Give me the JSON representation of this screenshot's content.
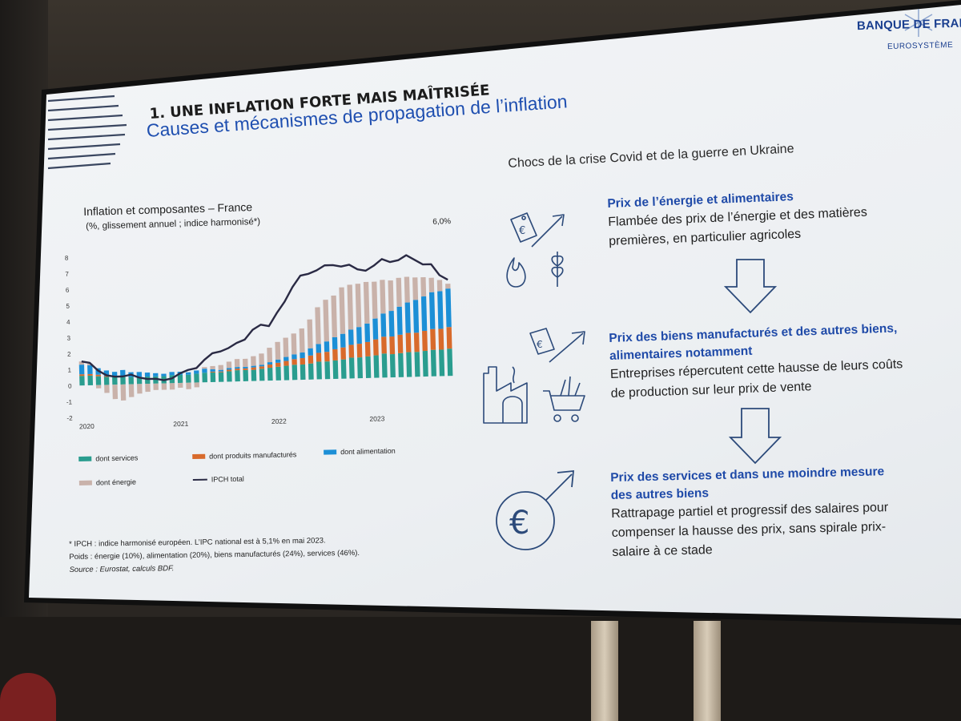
{
  "header": {
    "title": "1. UNE INFLATION FORTE MAIS MAÎTRISÉE",
    "subtitle": "Causes et mécanismes de propagation de l’inflation",
    "logo_name": "BANQUE DE FRANCE",
    "logo_sub": "EUROSYSTÈME"
  },
  "chart": {
    "title": "Inflation et composantes – France",
    "subtitle": "(%, glissement annuel ; indice harmonisé*)",
    "end_label": "6,0%",
    "legend": {
      "services": "dont services",
      "manufactures": "dont produits manufacturés",
      "alimentation": "dont alimentation",
      "energie": "dont énergie",
      "ipch": "IPCH total"
    },
    "notes": {
      "line1": "* IPCH : indice harmonisé européen. L’IPC national est à 5,1% en mai 2023.",
      "line2": "Poids : énergie (10%), alimentation (20%), biens manufacturés (24%), services (46%).",
      "source": "Source : Eurostat, calculs BDF."
    }
  },
  "chart_data": {
    "type": "bar",
    "ylim": [
      -2,
      8
    ],
    "yticks": [
      "8",
      "7",
      "6",
      "5",
      "4",
      "3",
      "2",
      "1",
      "0",
      "-1",
      "-2"
    ],
    "xlabels": [
      "2020",
      "2021",
      "2022",
      "2023"
    ],
    "series": [
      {
        "name": "dont services",
        "color": "#2a9d8f",
        "values": [
          0.6,
          0.6,
          0.55,
          0.5,
          0.5,
          0.5,
          0.45,
          0.45,
          0.45,
          0.45,
          0.45,
          0.5,
          0.5,
          0.5,
          0.55,
          0.6,
          0.6,
          0.6,
          0.65,
          0.7,
          0.7,
          0.7,
          0.75,
          0.8,
          0.85,
          0.9,
          0.95,
          0.95,
          1.0,
          1.1,
          1.1,
          1.15,
          1.2,
          1.3,
          1.3,
          1.35,
          1.4,
          1.5,
          1.45,
          1.5,
          1.55,
          1.55,
          1.6,
          1.65,
          1.65,
          1.7
        ]
      },
      {
        "name": "dont produits manufacturés",
        "color": "#d86a2b",
        "values": [
          0.1,
          0.1,
          0.1,
          0.05,
          0.0,
          0.0,
          0.0,
          0.0,
          0.0,
          0.0,
          0.0,
          0.0,
          0.0,
          0.0,
          0.0,
          0.0,
          0.05,
          0.05,
          0.1,
          0.1,
          0.1,
          0.15,
          0.15,
          0.2,
          0.25,
          0.3,
          0.35,
          0.4,
          0.5,
          0.55,
          0.6,
          0.7,
          0.75,
          0.8,
          0.85,
          0.9,
          1.0,
          1.05,
          1.1,
          1.15,
          1.2,
          1.2,
          1.25,
          1.3,
          1.3,
          1.35
        ]
      },
      {
        "name": "dont alimentation",
        "color": "#1c8fd6",
        "values": [
          0.6,
          0.55,
          0.4,
          0.35,
          0.3,
          0.4,
          0.3,
          0.3,
          0.25,
          0.2,
          0.15,
          0.2,
          0.2,
          0.15,
          0.2,
          0.25,
          0.15,
          0.1,
          0.1,
          0.1,
          0.1,
          0.1,
          0.1,
          0.15,
          0.2,
          0.25,
          0.3,
          0.35,
          0.45,
          0.55,
          0.65,
          0.75,
          0.85,
          0.95,
          1.05,
          1.15,
          1.3,
          1.45,
          1.6,
          1.75,
          1.9,
          2.05,
          2.15,
          2.3,
          2.35,
          2.4
        ]
      },
      {
        "name": "dont énergie",
        "color": "#c9b2aa",
        "values": [
          0.2,
          0.1,
          -0.2,
          -0.5,
          -0.9,
          -1.0,
          -0.8,
          -0.6,
          -0.5,
          -0.4,
          -0.4,
          -0.4,
          -0.3,
          -0.4,
          -0.3,
          0.1,
          0.2,
          0.3,
          0.4,
          0.5,
          0.5,
          0.6,
          0.7,
          0.9,
          1.1,
          1.2,
          1.3,
          1.5,
          1.8,
          2.3,
          2.6,
          2.6,
          2.9,
          2.8,
          2.7,
          2.6,
          2.3,
          2.1,
          1.9,
          1.8,
          1.6,
          1.4,
          1.2,
          0.9,
          0.7,
          0.3
        ]
      }
    ],
    "ipch_total": [
      1.5,
      1.4,
      0.9,
      0.6,
      0.5,
      0.5,
      0.6,
      0.4,
      0.3,
      0.3,
      0.2,
      0.3,
      0.6,
      0.8,
      0.9,
      1.4,
      1.8,
      1.9,
      2.1,
      2.4,
      2.6,
      3.2,
      3.5,
      3.4,
      4.2,
      4.9,
      5.8,
      6.5,
      6.6,
      6.8,
      7.1,
      7.1,
      7.0,
      7.1,
      6.8,
      6.7,
      7.0,
      7.4,
      7.2,
      7.3,
      7.6,
      7.3,
      7.0,
      7.0,
      6.3,
      6.0
    ]
  },
  "right": {
    "heading": "Chocs de la crise Covid et de la guerre en Ukraine",
    "block1": {
      "title": "Prix de l’énergie et alimentaires",
      "line1": "Flambée des prix de l’énergie et des matières",
      "line2": "premières, en particulier agricoles"
    },
    "block2": {
      "title1": "Prix des biens manufacturés et des autres biens,",
      "title2": "alimentaires notamment",
      "line1": "Entreprises répercutent cette hausse de leurs coûts",
      "line2": "de production sur leur prix de vente"
    },
    "block3": {
      "title1": "Prix des services et dans une moindre mesure",
      "title2": "des autres biens",
      "line1": "Rattrapage partiel et progressif des salaires pour",
      "line2": "compenser la hausse des prix, sans spirale prix-",
      "line3": "salaire à ce stade"
    }
  },
  "icons": [
    "price-tag-euro-icon",
    "trend-up-arrow-icon",
    "flame-icon",
    "wheat-icon",
    "factory-icon",
    "shopping-cart-icon",
    "euro-coin-arrow-icon",
    "arrow-down-icon"
  ]
}
